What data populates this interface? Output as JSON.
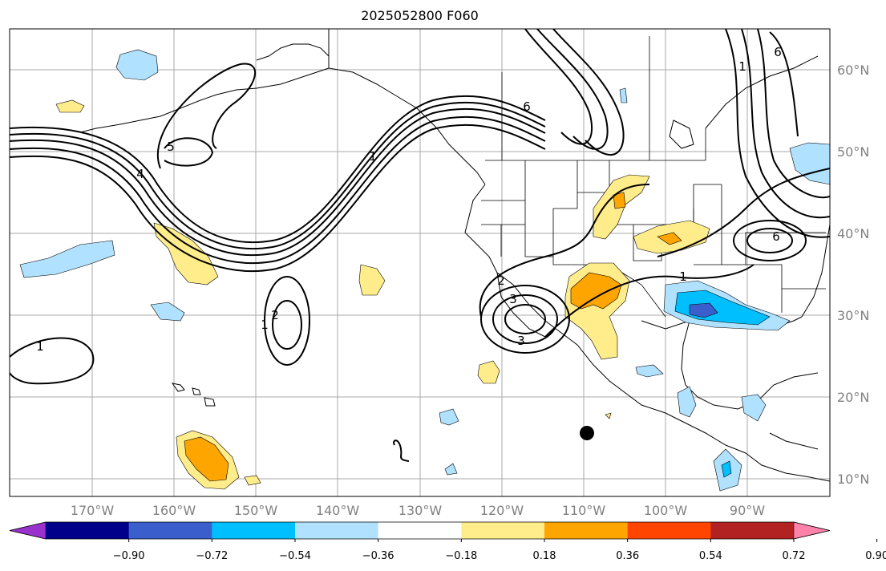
{
  "title": "2025052800 F060",
  "map": {
    "lon_labels": [
      "170°W",
      "160°W",
      "150°W",
      "140°W",
      "130°W",
      "120°W",
      "110°W",
      "100°W",
      "90°W"
    ],
    "lat_labels": [
      "60°N",
      "50°N",
      "40°N",
      "30°N",
      "20°N",
      "10°N"
    ],
    "contour_labels": [
      "1",
      "1",
      "2",
      "3",
      "4",
      "5",
      "6",
      "6",
      "1",
      "2",
      "3",
      "1",
      "1",
      "6"
    ]
  },
  "colorbar": {
    "colors": [
      "#9932CC",
      "#00008B",
      "#3A5FCD",
      "#00BFFF",
      "#B0E2FF",
      "#FFFFFF",
      "#FFEC8B",
      "#FFA500",
      "#FF4500",
      "#B22222",
      "#FF82AB"
    ],
    "ticks": [
      "−0.90",
      "−0.72",
      "−0.54",
      "−0.36",
      "−0.18",
      "0.18",
      "0.36",
      "0.54",
      "0.72",
      "0.90"
    ]
  },
  "marker": {
    "type": "tropical-system-dot",
    "color": "#000000"
  }
}
